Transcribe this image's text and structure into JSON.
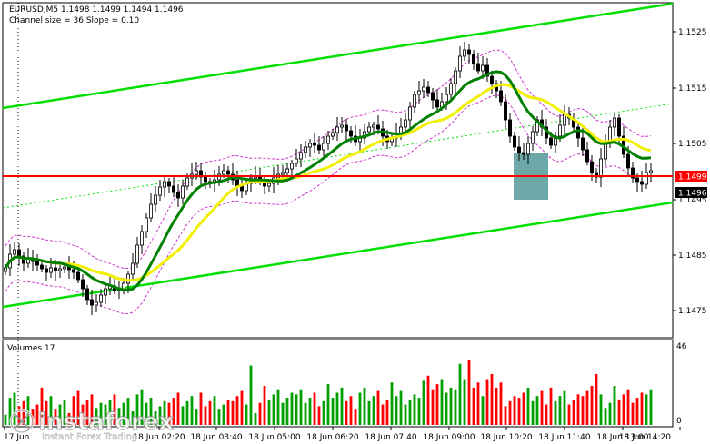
{
  "header": {
    "symbol_line": "EURUSD,M5  1.1498 1.1499 1.1494 1.1496",
    "channel_line": "Channel size = 36 Slope = 0.10"
  },
  "price_axis": {
    "ticks": [
      "1.1525",
      "1.1515",
      "1.1505",
      "1.1495",
      "1.1485",
      "1.1475"
    ],
    "level_label": "1.1499",
    "current_label": "1.1496"
  },
  "volume_panel": {
    "title": "Volumes 17",
    "max_label": "46",
    "zero_label": "0"
  },
  "time_axis": {
    "ticks": [
      "17 Jun",
      "18 Jun 02:20",
      "18 Jun 03:40",
      "18 Jun 05:00",
      "18 Jun 06:20",
      "18 Jun 07:40",
      "18 Jun 09:00",
      "18 Jun 10:20",
      "18 Jun 11:40",
      "18 Jun 13:00",
      "18 Jun 14:20"
    ]
  },
  "watermark": {
    "brand": "instaforex",
    "tagline": "Instant Forex Trading"
  },
  "colors": {
    "level_line": "#ff0000",
    "channel": "#00e000",
    "ma_fast": "#008000",
    "ma_slow": "#f0f000",
    "envelope": "#cc33cc",
    "box": "#5f9ea0",
    "vol_up": "#00a000",
    "vol_down": "#ff0000"
  }
}
